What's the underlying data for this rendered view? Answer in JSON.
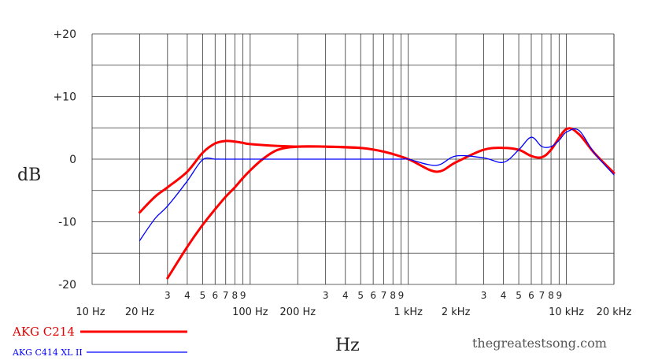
{
  "chart_data": {
    "type": "line",
    "title": "",
    "xlabel": "Hz",
    "ylabel": "dB",
    "x_scale": "log",
    "xlim": [
      10,
      20000
    ],
    "ylim": [
      -20,
      20
    ],
    "grid": true,
    "legend_position": "bottom-left",
    "watermark": "thegreatestsong.com",
    "y_ticks": [
      {
        "value": 20,
        "label": "+20"
      },
      {
        "value": 10,
        "label": "+10"
      },
      {
        "value": 0,
        "label": "0"
      },
      {
        "value": -10,
        "label": "-10"
      },
      {
        "value": -20,
        "label": "-20"
      }
    ],
    "x_major_ticks": [
      {
        "value": 10,
        "label": "10 Hz"
      },
      {
        "value": 20,
        "label": "20 Hz"
      },
      {
        "value": 100,
        "label": "100 Hz"
      },
      {
        "value": 200,
        "label": "200 Hz"
      },
      {
        "value": 1000,
        "label": "1 kHz"
      },
      {
        "value": 2000,
        "label": "2 kHz"
      },
      {
        "value": 10000,
        "label": "10 kHz"
      },
      {
        "value": 20000,
        "label": "20 kHz"
      }
    ],
    "x_minor_ticks": [
      {
        "value": 30,
        "label": "3"
      },
      {
        "value": 40,
        "label": "4"
      },
      {
        "value": 50,
        "label": "5"
      },
      {
        "value": 60,
        "label": "6"
      },
      {
        "value": 70,
        "label": "7"
      },
      {
        "value": 80,
        "label": "8"
      },
      {
        "value": 90,
        "label": "9"
      },
      {
        "value": 300,
        "label": "3"
      },
      {
        "value": 400,
        "label": "4"
      },
      {
        "value": 500,
        "label": "5"
      },
      {
        "value": 600,
        "label": "6"
      },
      {
        "value": 700,
        "label": "7"
      },
      {
        "value": 800,
        "label": "8"
      },
      {
        "value": 900,
        "label": "9"
      },
      {
        "value": 3000,
        "label": "3"
      },
      {
        "value": 4000,
        "label": "4"
      },
      {
        "value": 5000,
        "label": "5"
      },
      {
        "value": 6000,
        "label": "6"
      },
      {
        "value": 7000,
        "label": "7"
      },
      {
        "value": 8000,
        "label": "8"
      },
      {
        "value": 9000,
        "label": "9"
      }
    ],
    "series": [
      {
        "name": "AKG C214",
        "color": "#ff0000",
        "width": 3,
        "x": [
          20,
          25,
          30,
          40,
          50,
          60,
          70,
          80,
          90,
          100,
          150,
          200,
          300,
          500,
          700,
          1000,
          1500,
          2000,
          3000,
          4000,
          5000,
          6000,
          7000,
          8000,
          10000,
          12000,
          15000,
          20000
        ],
        "y": [
          -8.5,
          -6,
          -4.5,
          -2,
          1,
          2.5,
          2.9,
          2.8,
          2.6,
          2.4,
          2.1,
          2.0,
          2.0,
          1.8,
          1.2,
          0,
          -2.0,
          -0.5,
          1.5,
          1.8,
          1.5,
          0.5,
          0.3,
          1.5,
          4.8,
          4.0,
          1.0,
          -2.2
        ]
      },
      {
        "name": "",
        "color": "#ff0000",
        "width": 3,
        "x": [
          30,
          40,
          50,
          60,
          70,
          80,
          90,
          100,
          120,
          150,
          200,
          300,
          500
        ],
        "y": [
          -19,
          -14,
          -10.5,
          -8,
          -6,
          -4.5,
          -3,
          -1.8,
          0,
          1.5,
          2.0,
          2.0,
          1.8
        ]
      },
      {
        "name": "AKG C414 XL II",
        "color": "#0000ff",
        "width": 1.3,
        "x": [
          20,
          25,
          30,
          40,
          50,
          60,
          70,
          100,
          200,
          500,
          900,
          1000,
          1500,
          2000,
          3000,
          4000,
          5000,
          6000,
          7000,
          8000,
          9000,
          10000,
          12000,
          15000,
          20000
        ],
        "y": [
          -13,
          -9.5,
          -7.5,
          -3.5,
          -0.1,
          0,
          0,
          0,
          0,
          0,
          0,
          0,
          -1,
          0.5,
          0.2,
          -0.5,
          1.5,
          3.5,
          2.0,
          2.0,
          3.0,
          4.3,
          4.6,
          1.0,
          -2.5
        ]
      }
    ]
  }
}
